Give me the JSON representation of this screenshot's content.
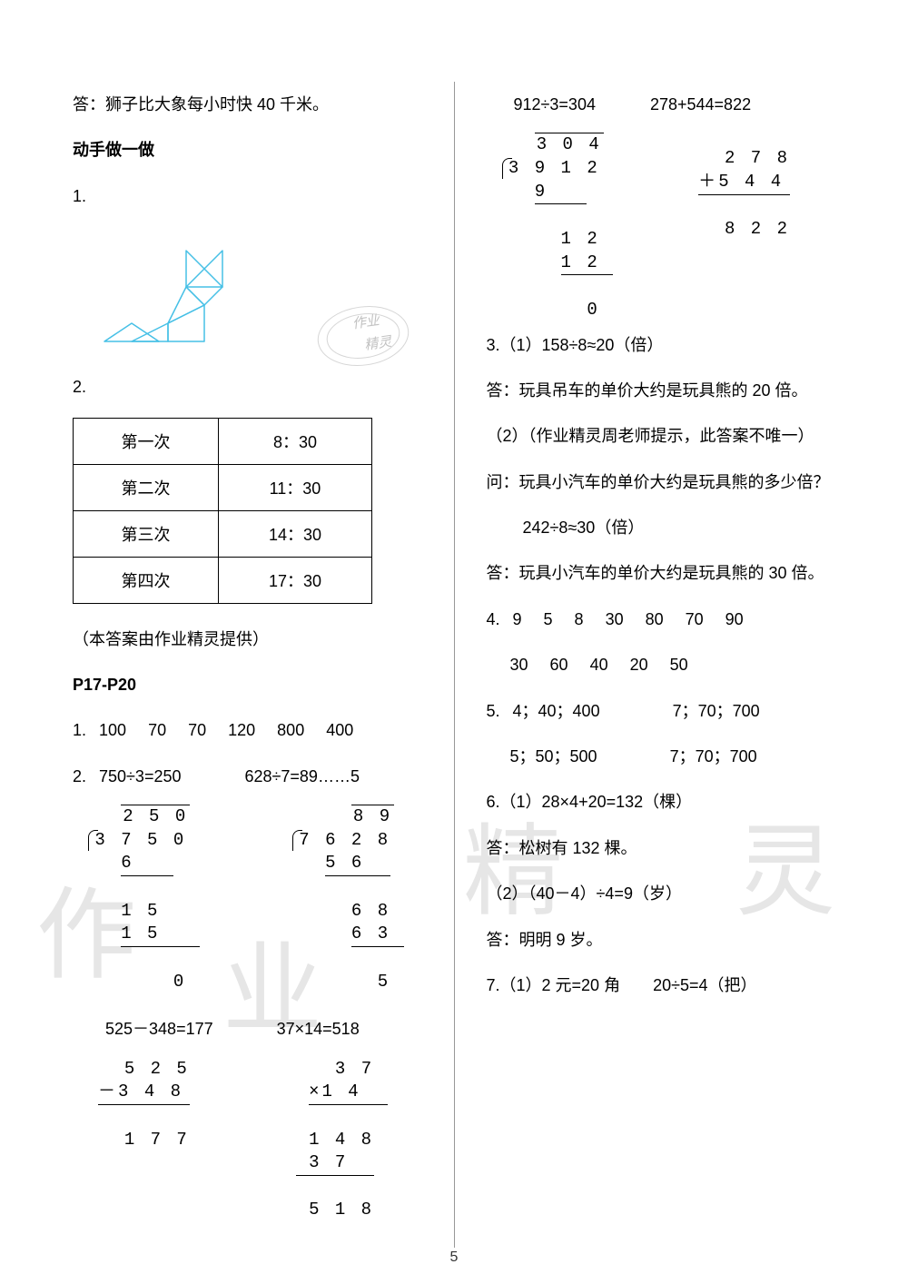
{
  "page_number": "5",
  "watermark_chars": [
    "作",
    "业",
    "精",
    "灵"
  ],
  "left": {
    "answer_line": "答：狮子比大象每小时快 40 千米。",
    "hands_on_title": "动手做一做",
    "q1_label": "1.",
    "tangram": {
      "stroke": "#46c0e6",
      "stroke_width": 1.5
    },
    "stamp": {
      "line1": "作业",
      "line2": "精灵"
    },
    "q2_label": "2.",
    "schedule": {
      "rows": [
        [
          "第一次",
          "8：30"
        ],
        [
          "第二次",
          "11：30"
        ],
        [
          "第三次",
          "14：30"
        ],
        [
          "第四次",
          "17：30"
        ]
      ]
    },
    "credit": "（本答案由作业精灵提供）",
    "section_title": "P17-P20",
    "q1b": {
      "label": "1.",
      "values": [
        "100",
        "70",
        "70",
        "120",
        "800",
        "400"
      ]
    },
    "q2b_label": "2.",
    "calc_a": {
      "title": "750÷3=250",
      "quotient": "2 5 0",
      "divisor": "3",
      "dividend": "7 5 0",
      "l1": "6",
      "l2": "1 5",
      "l3": "1 5",
      "l4": "0"
    },
    "calc_b": {
      "title": "628÷7=89……5",
      "quotient": "8 9",
      "divisor": "7",
      "dividend": "6 2 8",
      "l1": "5 6",
      "l2": "6 8",
      "l3": "6 3",
      "l4": "5"
    },
    "calc_c": {
      "title": "525－348=177",
      "n1": "5 2 5",
      "op": "－",
      "n2": "3 4 8",
      "res": "1 7 7"
    },
    "calc_d": {
      "title": "37×14=518",
      "n1": "3 7",
      "op": "×",
      "n2": "1 4",
      "p1": "1 4 8",
      "p2": "3 7",
      "res": "5 1 8"
    }
  },
  "right": {
    "calc_e": {
      "title": "912÷3=304",
      "quotient": "3 0 4",
      "divisor": "3",
      "dividend": "9 1 2",
      "l1": "9",
      "l2": "1 2",
      "l3": "1 2",
      "l4": "0"
    },
    "calc_f": {
      "title": "278+544=822",
      "n1": "2 7 8",
      "op": "＋",
      "n2": "5 4 4",
      "res": "8 2 2"
    },
    "q3_1": "3.（1）158÷8≈20（倍）",
    "q3_1_ans": "答：玩具吊车的单价大约是玩具熊的 20 倍。",
    "q3_2a": "（2）（作业精灵周老师提示，此答案不唯一）",
    "q3_2b": "问：玩具小汽车的单价大约是玩具熊的多少倍？",
    "q3_2c": "242÷8≈30（倍）",
    "q3_2d": "答：玩具小汽车的单价大约是玩具熊的 30 倍。",
    "q4": {
      "label": "4.",
      "row1": [
        "9",
        "5",
        "8",
        "30",
        "80",
        "70",
        "90"
      ],
      "row2": [
        "30",
        "60",
        "40",
        "20",
        "50"
      ]
    },
    "q5": {
      "label": "5.",
      "a": "4；40；400",
      "b": "7；70；700",
      "c": "5；50；500",
      "d": "7；70；700"
    },
    "q6_1": "6.（1）28×4+20=132（棵）",
    "q6_1_ans": "答：松树有 132 棵。",
    "q6_2": "（2）（40－4）÷4=9（岁）",
    "q6_2_ans": "答：明明 9 岁。",
    "q7": "7.（1）2 元=20 角　　20÷5=4（把）"
  }
}
